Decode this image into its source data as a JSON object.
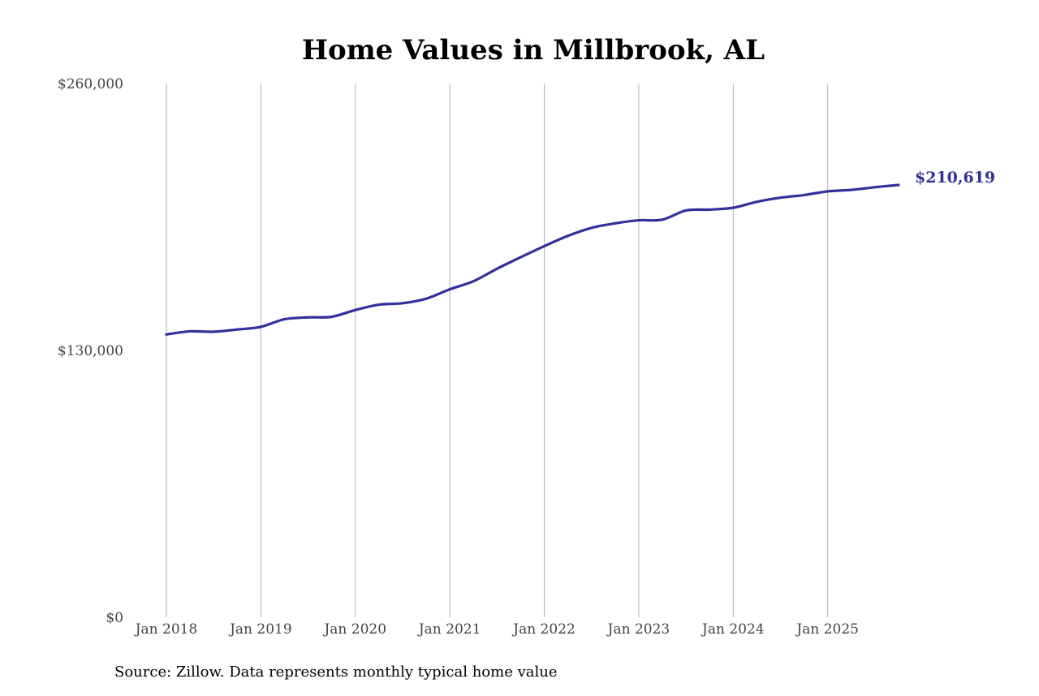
{
  "chart_data": {
    "type": "line",
    "title": "Home Values in Millbrook, AL",
    "source_note": "Source: Zillow. Data represents monthly typical home value",
    "xlabel": "",
    "ylabel": "",
    "x_ticks": [
      "2018-01",
      "2019-01",
      "2020-01",
      "2021-01",
      "2022-01",
      "2023-01",
      "2024-01",
      "2025-01"
    ],
    "x_tick_labels": [
      "Jan 2018",
      "Jan 2019",
      "Jan 2020",
      "Jan 2021",
      "Jan 2022",
      "Jan 2023",
      "Jan 2024",
      "Jan 2025"
    ],
    "y_ticks": [
      0,
      130000,
      260000
    ],
    "y_tick_labels": [
      "$0",
      "$130,000",
      "$260,000"
    ],
    "ylim": [
      0,
      260000
    ],
    "xlim": [
      "2018-01",
      "2025-10"
    ],
    "grid": "vertical",
    "line_color": "#33309a",
    "end_label": "$210,619",
    "series": [
      {
        "x": [
          "2018-01",
          "2018-04",
          "2018-07",
          "2018-10",
          "2019-01",
          "2019-04",
          "2019-07",
          "2019-10",
          "2020-01",
          "2020-04",
          "2020-07",
          "2020-10",
          "2021-01",
          "2021-04",
          "2021-07",
          "2021-10",
          "2022-01",
          "2022-04",
          "2022-07",
          "2022-10",
          "2023-01",
          "2023-04",
          "2023-07",
          "2023-10",
          "2024-01",
          "2024-04",
          "2024-07",
          "2024-10",
          "2025-01",
          "2025-04",
          "2025-07",
          "2025-10"
        ],
        "values": [
          137800,
          139300,
          139100,
          140200,
          141500,
          145200,
          146100,
          146400,
          149700,
          152300,
          153000,
          155200,
          159800,
          163700,
          169800,
          175400,
          180800,
          185800,
          189700,
          191900,
          193400,
          193700,
          198200,
          198600,
          199500,
          202400,
          204400,
          205700,
          207500,
          208200,
          209500,
          210619
        ]
      }
    ]
  }
}
